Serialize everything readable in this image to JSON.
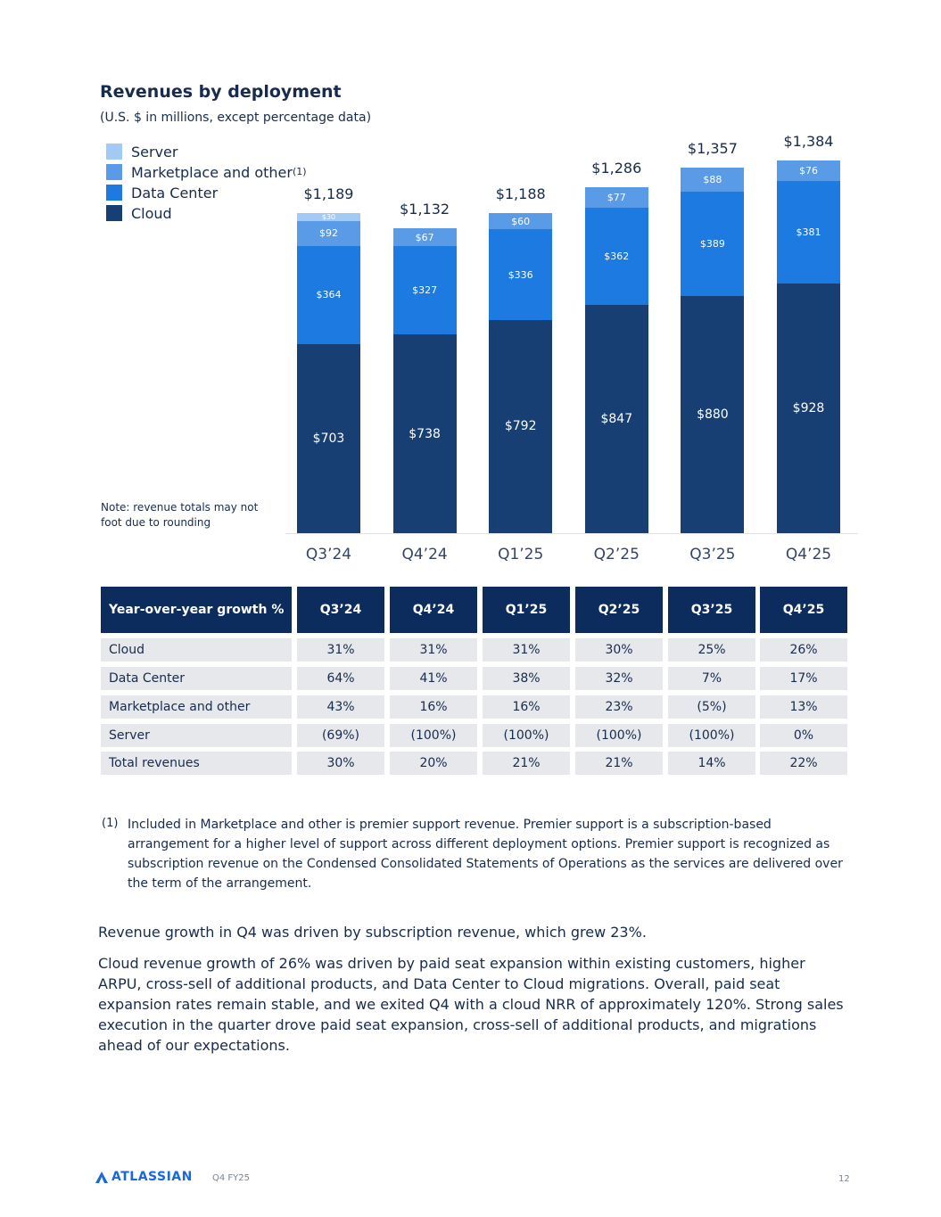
{
  "chart_data": {
    "type": "bar",
    "stacked": true,
    "title": "Revenues by deployment",
    "subtitle": "(U.S. $ in millions, except percentage data)",
    "categories": [
      "Q3’24",
      "Q4’24",
      "Q1’25",
      "Q2’25",
      "Q3’25",
      "Q4’25"
    ],
    "series": [
      {
        "name": "Cloud",
        "color": "#173f74",
        "values": [
          703,
          738,
          792,
          847,
          880,
          928
        ],
        "labels": [
          "$703",
          "$738",
          "$792",
          "$847",
          "$880",
          "$928"
        ]
      },
      {
        "name": "Data Center",
        "color": "#1d7ae0",
        "values": [
          364,
          327,
          336,
          362,
          389,
          381
        ],
        "labels": [
          "$364",
          "$327",
          "$336",
          "$362",
          "$389",
          "$381"
        ]
      },
      {
        "name": "Marketplace and other",
        "name_note": "(1)",
        "color": "#5a9be8",
        "values": [
          92,
          67,
          60,
          77,
          88,
          76
        ],
        "labels": [
          "$92",
          "$67",
          "$60",
          "$77",
          "$88",
          "$76"
        ]
      },
      {
        "name": "Server",
        "color": "#a3c9f5",
        "values": [
          30,
          0,
          0,
          0,
          0,
          0
        ],
        "labels": [
          "$30",
          "",
          "",
          "",
          "",
          ""
        ]
      }
    ],
    "totals": [
      "$1,189",
      "$1,132",
      "$1,188",
      "$1,286",
      "$1,357",
      "$1,384"
    ],
    "legend_order": [
      "Server",
      "Marketplace and other",
      "Data Center",
      "Cloud"
    ],
    "legend_position": "top-left",
    "grid": false,
    "note": "Note: revenue totals may not foot due to rounding"
  },
  "table": {
    "header": [
      "Year-over-year growth %",
      "Q3’24",
      "Q4’24",
      "Q1’25",
      "Q2’25",
      "Q3’25",
      "Q4’25"
    ],
    "rows": [
      [
        "Cloud",
        "31%",
        "31%",
        "31%",
        "30%",
        "25%",
        "26%"
      ],
      [
        "Data Center",
        "64%",
        "41%",
        "38%",
        "32%",
        "7%",
        "17%"
      ],
      [
        "Marketplace and other",
        "43%",
        "16%",
        "16%",
        "23%",
        "(5%)",
        "13%"
      ],
      [
        "Server",
        "(69%)",
        "(100%)",
        "(100%)",
        "(100%)",
        "(100%)",
        "0%"
      ],
      [
        "Total revenues",
        "30%",
        "20%",
        "21%",
        "21%",
        "14%",
        "22%"
      ]
    ]
  },
  "footnote": {
    "mark": "(1)",
    "text": "Included in Marketplace and other is premier support revenue. Premier support is a subscription-based arrangement for a higher level of support across different deployment options. Premier support is recognized as subscription revenue on the Condensed Consolidated Statements of Operations as the services are delivered over the term of the arrangement."
  },
  "paragraphs": [
    "Revenue growth in Q4 was driven by subscription revenue, which grew 23%.",
    "Cloud revenue growth of 26% was driven by paid seat expansion within existing customers, higher ARPU, cross-sell of additional products, and Data Center to Cloud migrations. Overall, paid seat expansion rates remain stable, and we exited Q4 with a cloud NRR of approximately 120%. Strong sales execution in the quarter drove paid seat expansion, cross-sell of additional products, and migrations ahead of our expectations."
  ],
  "footer": {
    "logo": "ATLASSIAN",
    "period": "Q4 FY25",
    "page": "12"
  }
}
